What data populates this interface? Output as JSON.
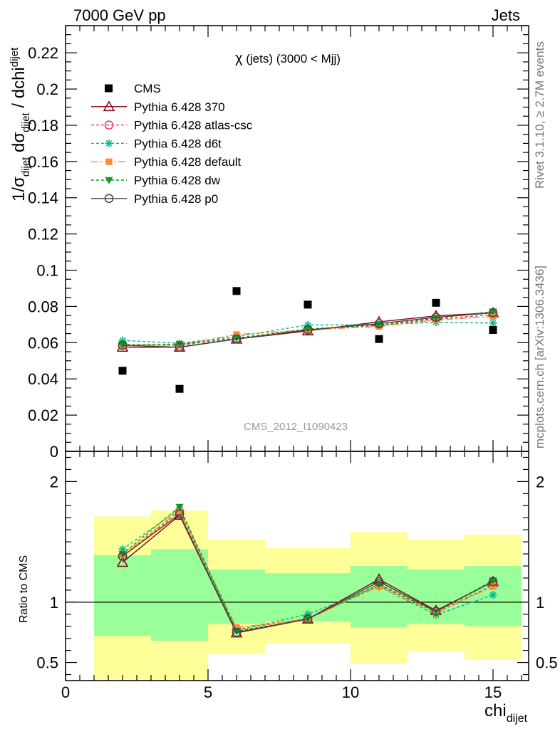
{
  "header": {
    "left": "7000 GeV pp",
    "right": "Jets"
  },
  "side_texts": {
    "rivet": "Rivet 3.1.10, ≥ 2.7M events",
    "mcplots": "mcplots.cern.ch [arXiv:1306.3436]"
  },
  "chart_data": {
    "type": "scatter",
    "title_prefix": "χ",
    "title_suffix": " (jets) (3000 < Mjj)",
    "analysis_label": "CMS_2012_I1090423",
    "xlabel": {
      "main": "chi",
      "sub": "dijet"
    },
    "ylabel": {
      "p1": "1/σ",
      "s1": "dijet",
      "p2": " dσ",
      "s2": "dijet",
      "p3": " / dchi",
      "s3": "dijet"
    },
    "ratio_ylabel": "Ratio to CMS",
    "xlim": [
      0,
      16.25
    ],
    "ylim": [
      0,
      0.235
    ],
    "ratio_ylim": [
      0.35,
      2.25
    ],
    "x_ticks": [
      0,
      5,
      10,
      15
    ],
    "x_tick_labels": [
      "0",
      "5",
      "10",
      "15"
    ],
    "y_ticks": [
      0,
      0.02,
      0.04,
      0.06,
      0.08,
      0.1,
      0.12,
      0.14,
      0.16,
      0.18,
      0.2,
      0.22
    ],
    "y_tick_labels": [
      "0",
      "0.02",
      "0.04",
      "0.06",
      "0.08",
      "0.1",
      "0.12",
      "0.14",
      "0.16",
      "0.18",
      "0.2",
      "0.22"
    ],
    "ratio_ticks": [
      0.5,
      1,
      2
    ],
    "ratio_tick_labels": [
      "0.5",
      "1",
      "2"
    ],
    "x": [
      2,
      4,
      6,
      8.5,
      11,
      13,
      15
    ],
    "bins": [
      [
        1,
        3
      ],
      [
        3,
        5
      ],
      [
        5,
        7
      ],
      [
        7,
        10
      ],
      [
        10,
        12
      ],
      [
        12,
        14
      ],
      [
        14,
        16
      ]
    ],
    "cms": {
      "name": "CMS",
      "values": [
        0.0445,
        0.0345,
        0.0885,
        0.081,
        0.062,
        0.082,
        0.067
      ],
      "band_inner": [
        [
          0.72,
          1.39
        ],
        [
          0.68,
          1.44
        ],
        [
          0.82,
          1.27
        ],
        [
          0.84,
          1.24
        ],
        [
          0.79,
          1.3
        ],
        [
          0.82,
          1.27
        ],
        [
          0.8,
          1.3
        ]
      ],
      "band_outer": [
        [
          0.35,
          1.71
        ],
        [
          0.35,
          1.76
        ],
        [
          0.57,
          1.52
        ],
        [
          0.66,
          1.45
        ],
        [
          0.49,
          1.58
        ],
        [
          0.59,
          1.52
        ],
        [
          0.52,
          1.56
        ]
      ]
    },
    "series": [
      {
        "name": "Pythia 6.428 370",
        "color": "#8b0015",
        "dash": "",
        "marker": "triangle-open",
        "values": [
          0.0575,
          0.0575,
          0.062,
          0.0665,
          0.0715,
          0.0748,
          0.0765
        ],
        "ratio": [
          1.33,
          1.72,
          0.745,
          0.86,
          1.19,
          0.93,
          1.17
        ]
      },
      {
        "name": "Pythia 6.428 atlas-csc",
        "color": "#ff3355",
        "dash": "4,3",
        "marker": "circle-open",
        "values": [
          0.059,
          0.0585,
          0.0625,
          0.0675,
          0.0695,
          0.073,
          0.0755
        ],
        "ratio": [
          1.38,
          1.75,
          0.775,
          0.865,
          1.14,
          0.92,
          1.14
        ]
      },
      {
        "name": "Pythia 6.428 d6t",
        "color": "#00bb88",
        "dash": "4,3",
        "marker": "asterisk",
        "values": [
          0.0612,
          0.0597,
          0.0633,
          0.0698,
          0.0698,
          0.0713,
          0.0708
        ],
        "ratio": [
          1.44,
          1.77,
          0.765,
          0.9,
          1.13,
          0.895,
          1.06
        ]
      },
      {
        "name": "Pythia 6.428 default",
        "color": "#ff8833",
        "dash": "10,3,3,3",
        "marker": "square-filled",
        "values": [
          0.0587,
          0.0587,
          0.0645,
          0.067,
          0.069,
          0.0725,
          0.0745
        ],
        "ratio": [
          1.39,
          1.76,
          0.79,
          0.86,
          1.13,
          0.91,
          1.13
        ]
      },
      {
        "name": "Pythia 6.428 dw",
        "color": "#119922",
        "dash": "4,3",
        "marker": "triangle-down-filled",
        "values": [
          0.0587,
          0.0592,
          0.0625,
          0.0675,
          0.0698,
          0.0735,
          0.0772
        ],
        "ratio": [
          1.4,
          1.79,
          0.76,
          0.86,
          1.15,
          0.92,
          1.18
        ]
      },
      {
        "name": "Pythia 6.428 p0",
        "color": "#444444",
        "dash": "",
        "marker": "circle-open",
        "values": [
          0.0585,
          0.0575,
          0.062,
          0.067,
          0.0705,
          0.074,
          0.0765
        ],
        "ratio": [
          1.38,
          1.73,
          0.75,
          0.86,
          1.17,
          0.925,
          1.17
        ]
      }
    ]
  }
}
